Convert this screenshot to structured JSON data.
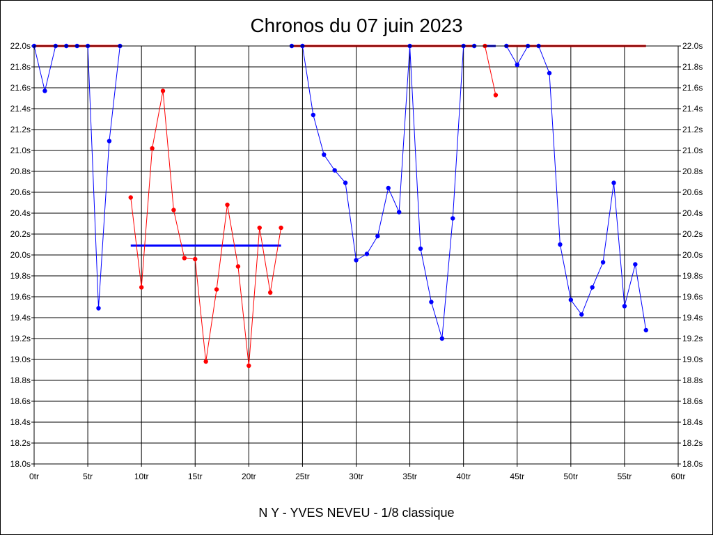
{
  "chart_data": {
    "type": "line",
    "title": "Chronos du 07 juin 2023",
    "subtitle": "N Y - YVES NEVEU - 1/8 classique",
    "x_unit": "tr",
    "y_unit": "s",
    "xlim": [
      0,
      60
    ],
    "ylim": [
      18.0,
      22.0
    ],
    "x_step": 5,
    "y_step": 0.2,
    "grid": true,
    "x_tick_labels": [
      "0tr",
      "5tr",
      "10tr",
      "15tr",
      "20tr",
      "25tr",
      "30tr",
      "35tr",
      "40tr",
      "45tr",
      "50tr",
      "55tr",
      "60tr"
    ],
    "y_tick_labels": [
      "18.0s",
      "18.2s",
      "18.4s",
      "18.6s",
      "18.8s",
      "19.0s",
      "19.2s",
      "19.4s",
      "19.6s",
      "19.8s",
      "20.0s",
      "20.2s",
      "20.4s",
      "20.6s",
      "20.8s",
      "21.0s",
      "21.2s",
      "21.4s",
      "21.6s",
      "21.8s",
      "22.0s"
    ],
    "series": [
      {
        "color": "#0000ff",
        "x": [
          0,
          1,
          2,
          3,
          4,
          5,
          6,
          7,
          8
        ],
        "y": [
          22.0,
          21.57,
          22.0,
          22.0,
          22.0,
          22.0,
          19.49,
          21.09,
          22.0
        ]
      },
      {
        "color": "#ff0000",
        "x": [
          9,
          10,
          11,
          12,
          13,
          14,
          15,
          16,
          17,
          18,
          19,
          20,
          21,
          22,
          23
        ],
        "y": [
          20.55,
          19.69,
          21.02,
          21.57,
          20.43,
          19.97,
          19.96,
          18.98,
          19.67,
          20.48,
          19.89,
          18.94,
          20.26,
          19.64,
          20.26
        ]
      },
      {
        "color": "#0000ff",
        "x": [
          24,
          25,
          26,
          27,
          28,
          29,
          30,
          31,
          32,
          33,
          34,
          35,
          36,
          37,
          38,
          39,
          40,
          41
        ],
        "y": [
          22.0,
          22.0,
          21.34,
          20.96,
          20.81,
          20.69,
          19.95,
          20.01,
          20.18,
          20.64,
          20.41,
          22.0,
          20.06,
          19.55,
          19.2,
          20.35,
          22.0,
          22.0
        ]
      },
      {
        "color": "#ff0000",
        "x": [
          42,
          43
        ],
        "y": [
          22.0,
          21.53
        ]
      },
      {
        "color": "#0000ff",
        "x": [
          44,
          45,
          46,
          47,
          48,
          49,
          50,
          51,
          52,
          53,
          54,
          55,
          56,
          57
        ],
        "y": [
          22.0,
          21.82,
          22.0,
          22.0,
          21.74,
          20.1,
          19.57,
          19.43,
          19.69,
          19.93,
          20.69,
          19.51,
          19.91,
          19.28
        ]
      }
    ],
    "reference_lines": [
      {
        "color": "#ff0000",
        "x": [
          0,
          8
        ],
        "y": 22.0
      },
      {
        "color": "#0000ff",
        "x": [
          9,
          23
        ],
        "y": 20.09
      },
      {
        "color": "#ff0000",
        "x": [
          24,
          41
        ],
        "y": 22.0
      },
      {
        "color": "#0000ff",
        "x": [
          42,
          43
        ],
        "y": 22.0
      },
      {
        "color": "#ff0000",
        "x": [
          44,
          57
        ],
        "y": 22.0
      }
    ]
  }
}
